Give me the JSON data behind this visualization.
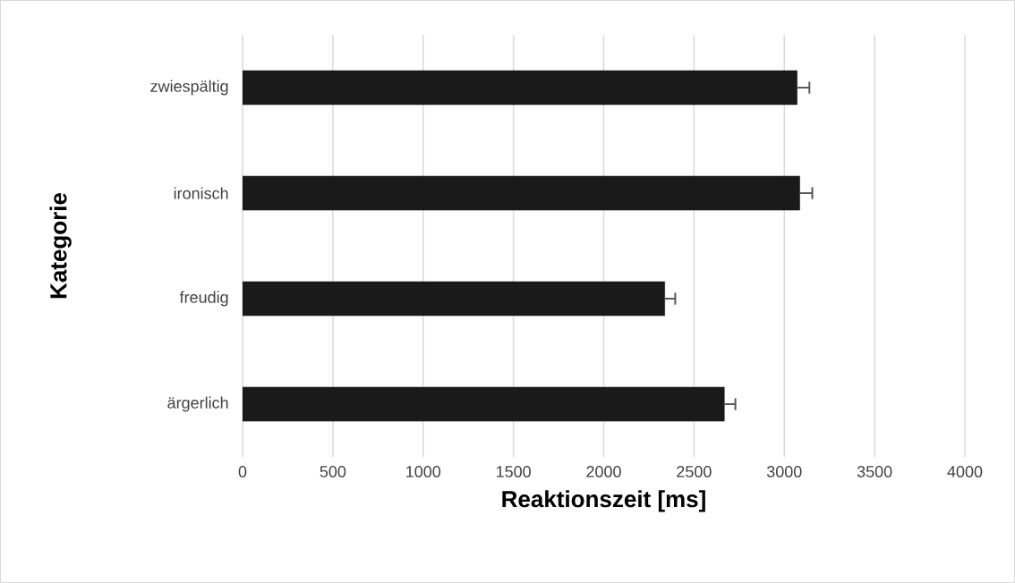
{
  "chart_data": {
    "type": "bar",
    "orientation": "horizontal",
    "categories": [
      "zwiespältig",
      "ironisch",
      "freudig",
      "ärgerlich"
    ],
    "values": [
      3071,
      3086,
      2338,
      2668
    ],
    "errors": [
      [
        3071,
        3139
      ],
      [
        3086,
        3155
      ],
      [
        2338,
        2396
      ],
      [
        2668,
        2729
      ]
    ],
    "color": "#1a1a1a",
    "xlim": [
      0,
      4000
    ],
    "xticks": [
      0,
      500,
      1000,
      1500,
      2000,
      2500,
      3000,
      3500,
      4000
    ],
    "grid": "x",
    "xlabel": "Reaktionszeit [ms]",
    "ylabel": "Kategorie"
  }
}
